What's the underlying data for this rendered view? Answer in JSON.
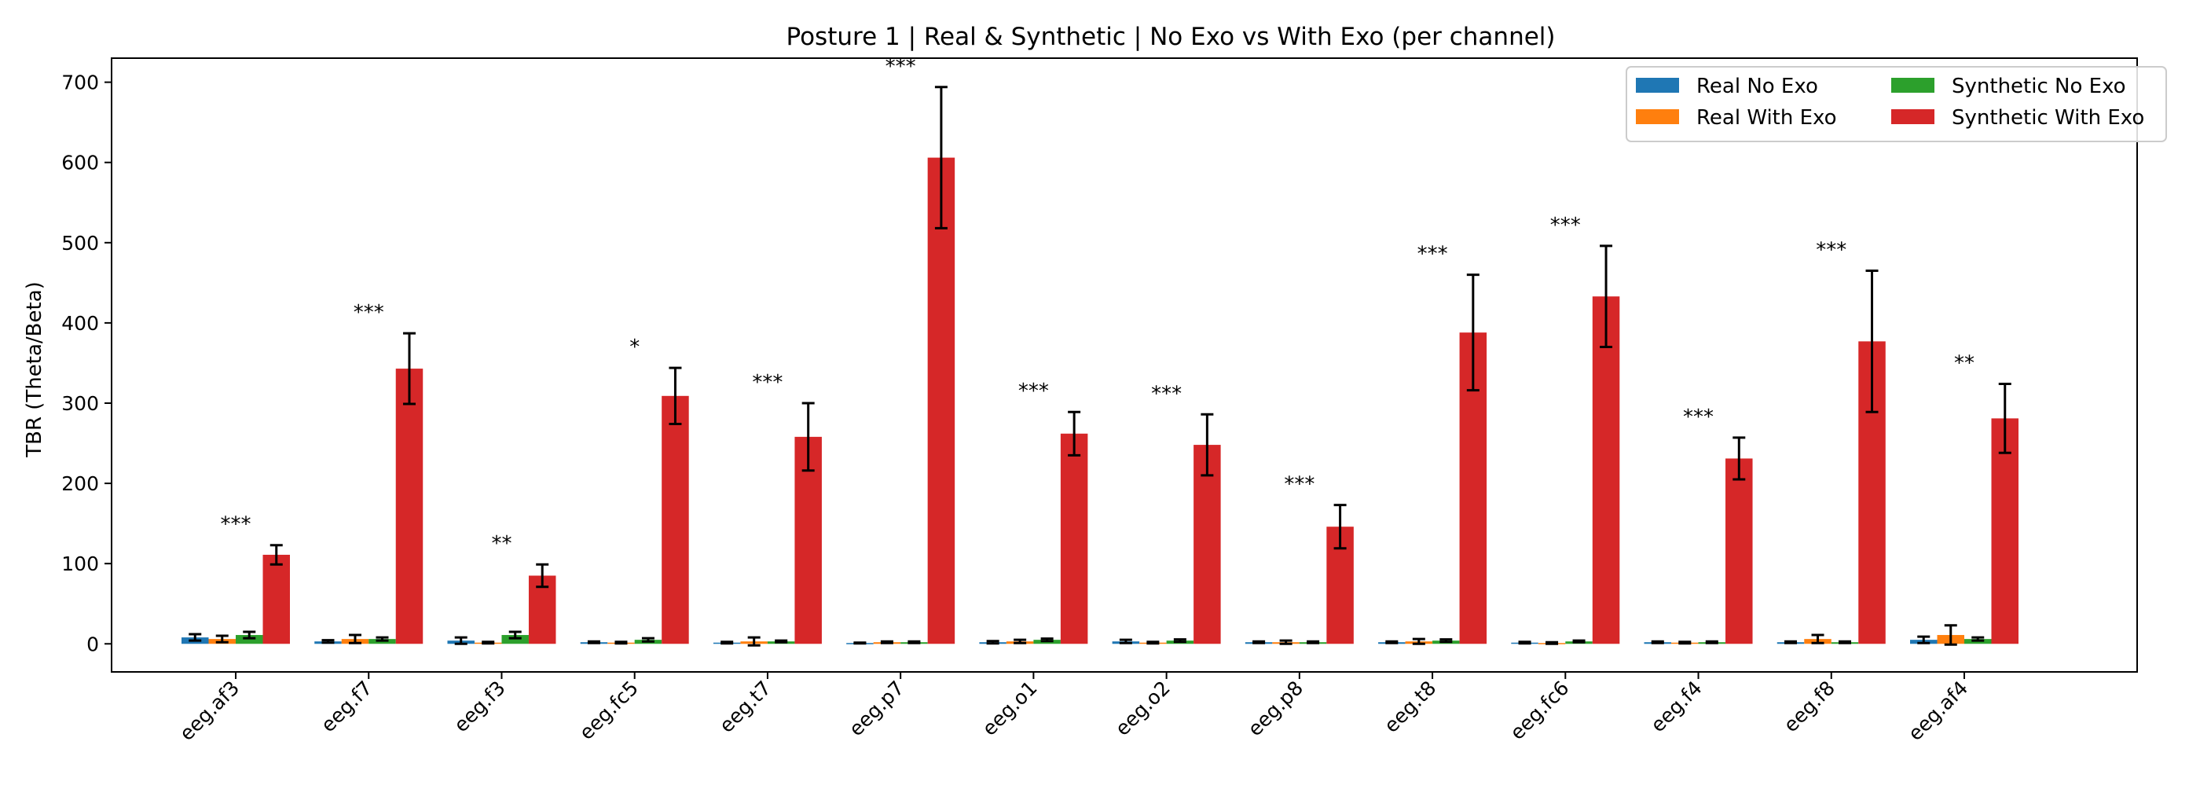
{
  "chart_data": {
    "type": "bar",
    "title": "Posture 1 | Real & Synthetic | No Exo vs With Exo (per channel)",
    "xlabel": "",
    "ylabel": "TBR (Theta/Beta)",
    "ylim": [
      -35,
      730
    ],
    "yticks": [
      0,
      100,
      200,
      300,
      400,
      500,
      600,
      700
    ],
    "categories": [
      "eeg.af3",
      "eeg.f7",
      "eeg.f3",
      "eeg.fc5",
      "eeg.t7",
      "eeg.p7",
      "eeg.o1",
      "eeg.o2",
      "eeg.p8",
      "eeg.t8",
      "eeg.fc6",
      "eeg.f4",
      "eeg.f8",
      "eeg.af4"
    ],
    "series": [
      {
        "name": "Real No Exo",
        "color": "#1f77b4",
        "values": [
          8,
          3,
          4,
          2,
          1.5,
          1,
          2,
          3,
          2,
          2,
          1.5,
          2,
          2,
          5
        ],
        "errors": [
          4,
          1.5,
          4,
          1,
          1,
          0.5,
          1.5,
          2,
          1,
          1,
          1,
          1,
          1,
          4
        ]
      },
      {
        "name": "Real With Exo",
        "color": "#ff7f0e",
        "values": [
          6,
          6,
          1.5,
          1.5,
          3,
          2,
          3,
          1.5,
          2,
          3,
          1,
          1.5,
          6,
          11
        ],
        "errors": [
          4,
          5,
          1,
          1,
          5,
          1,
          2,
          1,
          2,
          3,
          1,
          1,
          5,
          12
        ]
      },
      {
        "name": "Synthetic No Exo",
        "color": "#2ca02c",
        "values": [
          11,
          6,
          11,
          5,
          3,
          2,
          5,
          4,
          2,
          4,
          3,
          2,
          2,
          6
        ],
        "errors": [
          4,
          2,
          4,
          2,
          1,
          1,
          1.5,
          1.5,
          1,
          1.5,
          1,
          1,
          1,
          2
        ]
      },
      {
        "name": "Synthetic With Exo",
        "color": "#d62728",
        "values": [
          111,
          343,
          85,
          309,
          258,
          606,
          262,
          248,
          146,
          388,
          433,
          231,
          377,
          281
        ],
        "errors": [
          12,
          44,
          14,
          35,
          42,
          88,
          27,
          38,
          27,
          72,
          63,
          26,
          88,
          43
        ]
      }
    ],
    "significance": [
      "***",
      "***",
      "**",
      "*",
      "***",
      "***",
      "***",
      "***",
      "***",
      "***",
      "***",
      "***",
      "***",
      "**"
    ],
    "legend": {
      "position": "top-right",
      "columns": 2
    },
    "grid": false
  }
}
